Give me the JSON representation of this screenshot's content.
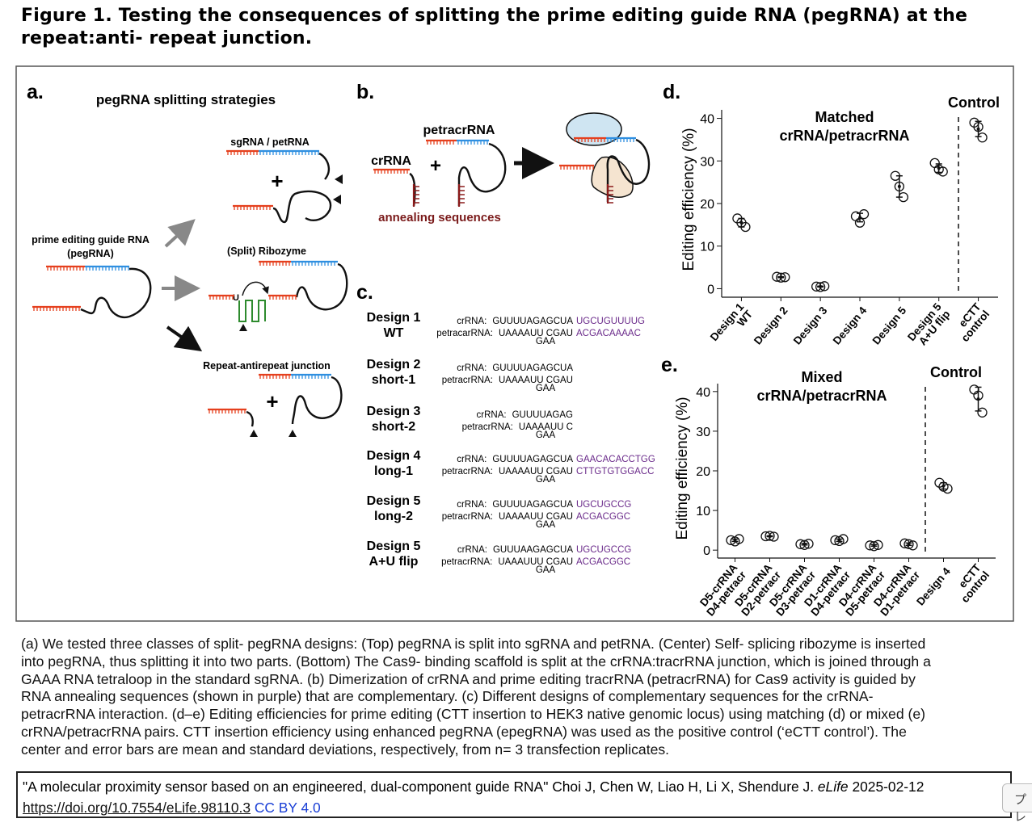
{
  "header": {
    "title": [
      "Figure 1. Testing the consequences of splitting the prime editing guide RNA (pegRNA) at the",
      "repeat:anti- repeat junction."
    ]
  },
  "figure": {
    "panel_a": {
      "label": "a.",
      "title": "pegRNA splitting strategies",
      "pegrna_label": [
        "prime editing guide RNA",
        "(pegRNA)"
      ],
      "strategies": [
        "sgRNA / petRNA",
        "(Split) Ribozyme",
        "Repeat-antirepeat junction"
      ],
      "ribozyme_base": "U",
      "plus": "+"
    },
    "panel_b": {
      "label": "b.",
      "petracrrna": "petracrRNA",
      "crrna": "crRNA",
      "plus": "+",
      "annealing": "annealing sequences"
    },
    "panel_c": {
      "label": "c.",
      "designs": [
        {
          "name": [
            "Design 1",
            "WT"
          ],
          "cr_label": "crRNA:",
          "cr_seq": "GUUUUAGAGCUA",
          "cr_ext": "UGCUGUUUUG",
          "pe_label": "petracarRNA:",
          "pe_seq": "UAAAAUU CGAU",
          "pe_ext": "ACGACAAAAC",
          "loop": "GAA"
        },
        {
          "name": [
            "Design 2",
            "short-1"
          ],
          "cr_label": "crRNA:",
          "cr_seq": "GUUUUAGAGCUA",
          "pe_label": "petracrRNA:",
          "pe_seq": "UAAAAUU CGAU",
          "loop": "GAA"
        },
        {
          "name": [
            "Design 3",
            "short-2"
          ],
          "cr_label": "crRNA:",
          "cr_seq": "GUUUUAGAG",
          "pe_label": "petracrRNA:",
          "pe_seq": "UAAAAUU C",
          "loop": "GAA"
        },
        {
          "name": [
            "Design 4",
            "long-1"
          ],
          "cr_label": "crRNA:",
          "cr_seq": "GUUUUAGAGCUA",
          "cr_ext": "GAACACACCTGG",
          "pe_label": "petracrRNA:",
          "pe_seq": "UAAAAUU CGAU",
          "pe_ext": "CTTGTGTGGACC",
          "loop": "GAA"
        },
        {
          "name": [
            "Design 5",
            "long-2"
          ],
          "cr_label": "crRNA:",
          "cr_seq": "GUUUUAGAGCUA",
          "cr_ext": "UGCUGCCG",
          "pe_label": "petracrRNA:",
          "pe_seq": "UAAAAUU CGAU",
          "pe_ext": "ACGACGGC",
          "loop": "GAA"
        },
        {
          "name": [
            "Design 5",
            "A+U flip"
          ],
          "cr_label": "crRNA:",
          "cr_seq": "GUUUAAGAGCUA",
          "cr_ext": "UGCUGCCG",
          "pe_label": "petracrRNA:",
          "pe_seq": "UAAAUUU CGAU",
          "pe_ext": "ACGACGGC",
          "loop": "GAA"
        }
      ]
    },
    "panel_d": {
      "label": "d."
    },
    "panel_e": {
      "label": "e."
    }
  },
  "chart_data": [
    {
      "type": "scatter",
      "annotation": [
        "Matched",
        "crRNA/petracrRNA"
      ],
      "group_label": "Control",
      "y_label": "Editing efficiency (%)",
      "categories": [
        [
          "Design 1",
          "WT"
        ],
        [
          "Design 2"
        ],
        [
          "Design 3"
        ],
        [
          "Design 4"
        ],
        [
          "Design 5"
        ],
        [
          "Design 5",
          "A+U flip"
        ],
        [
          "eCTT",
          "control"
        ]
      ],
      "replicates": [
        [
          16.5,
          15.5,
          14.5
        ],
        [
          2.8,
          2.6,
          2.7
        ],
        [
          0.5,
          0.4,
          0.6
        ],
        [
          17,
          15.5,
          17.5
        ],
        [
          26.5,
          24,
          21.5
        ],
        [
          29.5,
          28,
          27.5
        ],
        [
          39,
          38,
          35.5
        ]
      ],
      "means": [
        15.5,
        2.7,
        0.5,
        16.7,
        24,
        28.3,
        37.5
      ],
      "sd": [
        1,
        0.1,
        0.1,
        1,
        2.5,
        1,
        1.8
      ],
      "ylim": [
        -2,
        42
      ],
      "yticks": [
        0,
        10,
        20,
        30,
        40
      ]
    },
    {
      "type": "scatter",
      "annotation": [
        "Mixed",
        "crRNA/petracrRNA"
      ],
      "group_label": "Control",
      "y_label": "Editing efficiency (%)",
      "categories": [
        [
          "D5-crRNA",
          "D4-petracr"
        ],
        [
          "D5-crRNA",
          "D2-petracr"
        ],
        [
          "D5-crRNA",
          "D3-petracr"
        ],
        [
          "D1-crRNA",
          "D4-petracr"
        ],
        [
          "D4-crRNA",
          "D5-petracr"
        ],
        [
          "D4-crRNA",
          "D1-petracr"
        ],
        [
          "Design 4"
        ],
        [
          "eCTT",
          "control"
        ]
      ],
      "replicates": [
        [
          2.5,
          2.2,
          2.8
        ],
        [
          3.5,
          3.6,
          3.4
        ],
        [
          1.5,
          1.3,
          1.6
        ],
        [
          2.5,
          2.3,
          2.8
        ],
        [
          1.2,
          1,
          1.3
        ],
        [
          1.7,
          1.5,
          1.2
        ],
        [
          17,
          16,
          15.5
        ],
        [
          40.5,
          39,
          34.7
        ]
      ],
      "means": [
        2.5,
        3.5,
        1.5,
        2.5,
        1.2,
        1.5,
        16.2,
        38.1
      ],
      "sd": [
        0.3,
        0.1,
        0.2,
        0.3,
        0.2,
        0.3,
        0.8,
        3
      ],
      "ylim": [
        -2,
        42
      ],
      "yticks": [
        0,
        10,
        20,
        30,
        40
      ]
    }
  ],
  "caption": [
    "(a) We tested three classes of split- pegRNA designs: (Top) pegRNA is split into sgRNA and petRNA. (Center) Self- splicing ribozyme is inserted",
    "into pegRNA, thus splitting it into two parts. (Bottom) The Cas9- binding scaffold is split at the crRNA:tracrRNA junction, which is joined through a",
    "GAAA RNA tetraloop in the standard sgRNA. (b) Dimerization of crRNA and prime editing tracrRNA (petracrRNA) for Cas9 activity is guided by",
    "RNA annealing sequences (shown in purple) that are complementary. (c) Different designs of complementary sequences for the crRNA-",
    "petracrRNA interaction. (d–e) Editing efficiencies for prime editing (CTT insertion to HEK3 native genomic locus) using matching (d) or mixed (e)",
    "crRNA/petracrRNA pairs. CTT insertion efficiency using enhanced pegRNA (epegRNA) was used as the positive control (‘eCTT control’). The",
    "center and error bars are mean and standard deviations, respectively, from n= 3 transfection replicates."
  ],
  "citation": {
    "text": "\"A molecular proximity sensor based on an engineered, dual-component guide RNA\" Choi J, Chen W, Liao H, Li X, Shendure J.",
    "journal": "eLife",
    "date": "2025-02-12",
    "doi": "https://doi.org/10.7554/eLife.98110.3",
    "license": "CC BY 4.0"
  },
  "tab": "プレ"
}
